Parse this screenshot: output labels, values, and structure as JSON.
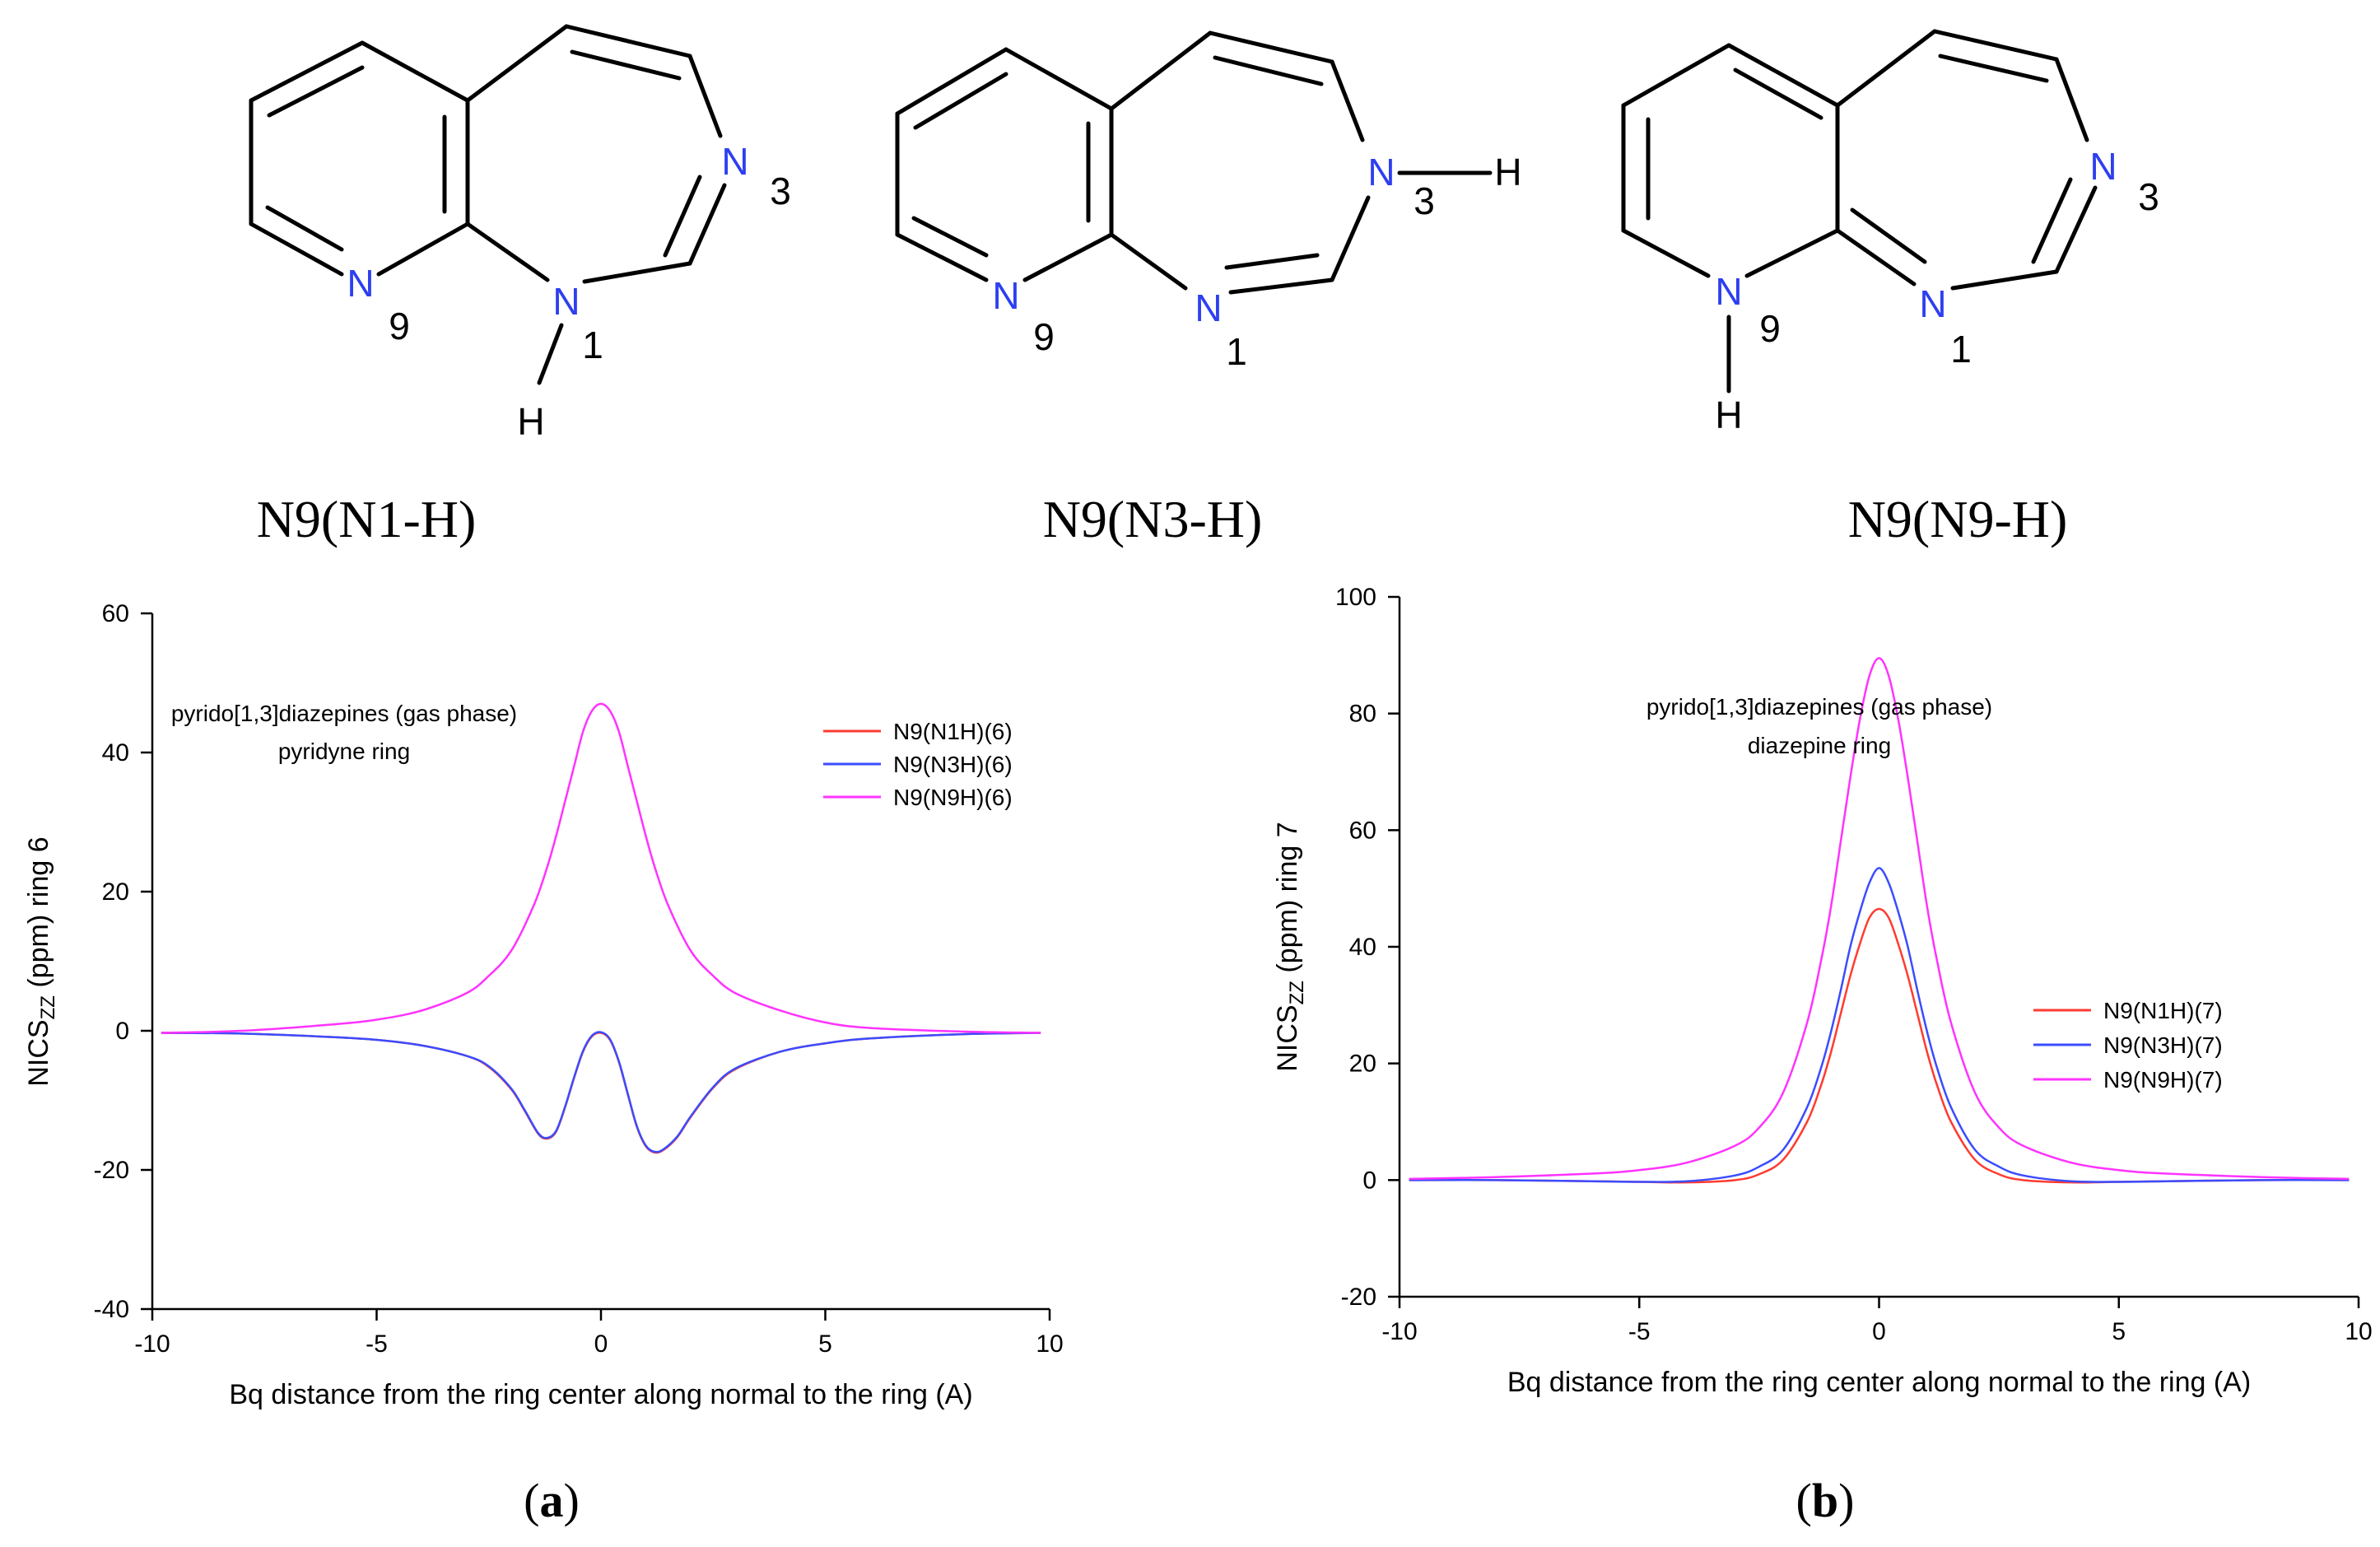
{
  "structures": [
    {
      "name": "N9(N1-H)",
      "atom_N": "N",
      "atom_H": "H",
      "labels": [
        "3",
        "9",
        "1"
      ]
    },
    {
      "name": "N9(N3-H)",
      "atom_N": "N",
      "atom_H": "H",
      "labels": [
        "3",
        "9",
        "1"
      ]
    },
    {
      "name": "N9(N9-H)",
      "atom_N": "N",
      "atom_H": "H",
      "labels": [
        "3",
        "9",
        "1"
      ]
    }
  ],
  "colors": {
    "N1H": "#ff3b30",
    "N3H": "#3b4cff",
    "N9H": "#ff33ff",
    "atomN": "#2d3ff0"
  },
  "chart_data": [
    {
      "type": "line",
      "panel_label": "a",
      "annotation_line1": "pyrido[1,3]diazepines (gas phase)",
      "annotation_line2": "pyridyne ring",
      "ylabel_prefix": "NICS",
      "ylabel_sub": "ZZ",
      "ylabel_suffix": " (ppm) ring 6",
      "xlabel": "Bq distance from the ring center along normal to the ring (A)",
      "xlim": [
        -10,
        10
      ],
      "ylim": [
        -40,
        60
      ],
      "xticks": [
        -10,
        -5,
        0,
        5,
        10
      ],
      "yticks": [
        -40,
        -20,
        0,
        20,
        40,
        60
      ],
      "legend_position": "right-middle",
      "series": [
        {
          "name": "N9(N1H)(6)",
          "color": "#ff3b30",
          "x": [
            -9.8,
            -8,
            -6,
            -5,
            -4,
            -3,
            -2.5,
            -2,
            -1.7,
            -1.4,
            -1.2,
            -1.0,
            -0.8,
            -0.6,
            -0.4,
            -0.2,
            0,
            0.2,
            0.4,
            0.6,
            0.8,
            1.0,
            1.2,
            1.4,
            1.7,
            2,
            2.5,
            3,
            4,
            5,
            6,
            8,
            9.8
          ],
          "y": [
            -0.3,
            -0.4,
            -0.9,
            -1.3,
            -2.1,
            -3.6,
            -5.2,
            -8.4,
            -11.5,
            -14.8,
            -15.5,
            -14.5,
            -11,
            -6.8,
            -3,
            -0.8,
            -0.3,
            -1.3,
            -4.5,
            -9.2,
            -13.8,
            -16.6,
            -17.5,
            -17.1,
            -15.3,
            -12.4,
            -8.2,
            -5.5,
            -3,
            -1.8,
            -1.1,
            -0.5,
            -0.3
          ]
        },
        {
          "name": "N9(N3H)(6)",
          "color": "#3b4cff",
          "x": [
            -9.8,
            -8,
            -6,
            -5,
            -4,
            -3,
            -2.5,
            -2,
            -1.7,
            -1.4,
            -1.2,
            -1.0,
            -0.8,
            -0.6,
            -0.4,
            -0.2,
            0,
            0.2,
            0.4,
            0.6,
            0.8,
            1.0,
            1.2,
            1.4,
            1.7,
            2,
            2.5,
            3,
            4,
            5,
            6,
            8,
            9.8
          ],
          "y": [
            -0.3,
            -0.4,
            -0.9,
            -1.3,
            -2.1,
            -3.6,
            -5.1,
            -8.3,
            -11.4,
            -14.7,
            -15.4,
            -14.4,
            -10.9,
            -6.7,
            -2.9,
            -0.7,
            -0.2,
            -1.2,
            -4.4,
            -9.1,
            -13.7,
            -16.5,
            -17.4,
            -17.0,
            -15.2,
            -12.3,
            -8.1,
            -5.4,
            -3,
            -1.8,
            -1.1,
            -0.5,
            -0.3
          ]
        },
        {
          "name": "N9(N9H)(6)",
          "color": "#ff33ff",
          "x": [
            -9.8,
            -8,
            -6,
            -5,
            -4,
            -3,
            -2.5,
            -2,
            -1.5,
            -1.2,
            -1.0,
            -0.8,
            -0.6,
            -0.4,
            -0.2,
            0,
            0.2,
            0.4,
            0.6,
            0.8,
            1.0,
            1.2,
            1.5,
            2,
            2.5,
            3,
            4,
            5,
            6,
            8,
            9.8
          ],
          "y": [
            -0.3,
            0,
            0.9,
            1.6,
            2.9,
            5.4,
            7.9,
            11.5,
            18,
            23.5,
            28,
            33,
            38,
            43,
            46,
            47,
            46,
            43,
            38,
            33,
            28,
            23.5,
            18,
            11.5,
            7.9,
            5.4,
            2.9,
            1.2,
            0.4,
            -0.1,
            -0.3
          ]
        }
      ]
    },
    {
      "type": "line",
      "panel_label": "b",
      "annotation_line1": "pyrido[1,3]diazepines (gas phase)",
      "annotation_line2": "diazepine ring",
      "ylabel_prefix": "NICS",
      "ylabel_sub": "ZZ",
      "ylabel_suffix": " (ppm) ring 7",
      "xlabel": "Bq distance from the ring center along normal to the ring (A)",
      "xlim": [
        -10,
        10
      ],
      "ylim": [
        -20,
        100
      ],
      "xticks": [
        -10,
        -5,
        0,
        5,
        10
      ],
      "yticks": [
        -20,
        0,
        20,
        40,
        60,
        80,
        100
      ],
      "legend_position": "right-middle",
      "series": [
        {
          "name": "N9(N1H)(7)",
          "color": "#ff3b30",
          "x": [
            -9.8,
            -8,
            -6,
            -5,
            -4,
            -3,
            -2.5,
            -2,
            -1.5,
            -1.2,
            -1.0,
            -0.8,
            -0.6,
            -0.4,
            -0.2,
            0,
            0.2,
            0.4,
            0.6,
            0.8,
            1.0,
            1.2,
            1.5,
            2,
            2.5,
            3,
            4,
            5,
            6,
            8,
            9.8
          ],
          "y": [
            0,
            0,
            -0.2,
            -0.3,
            -0.4,
            0,
            1,
            3.5,
            10,
            16.5,
            22,
            28.5,
            35,
            40.5,
            45,
            46.5,
            45,
            40.5,
            35,
            28.5,
            22,
            16.5,
            10,
            3.5,
            1,
            0,
            -0.4,
            -0.3,
            -0.2,
            0,
            0
          ]
        },
        {
          "name": "N9(N3H)(7)",
          "color": "#3b4cff",
          "x": [
            -9.8,
            -8,
            -6,
            -5,
            -4,
            -3,
            -2.5,
            -2,
            -1.5,
            -1.2,
            -1.0,
            -0.8,
            -0.6,
            -0.4,
            -0.2,
            0,
            0.2,
            0.4,
            0.6,
            0.8,
            1.0,
            1.2,
            1.5,
            2,
            2.5,
            3,
            4,
            5,
            6,
            8,
            9.8
          ],
          "y": [
            0,
            0,
            -0.2,
            -0.3,
            -0.2,
            0.8,
            2.3,
            5.2,
            12.5,
            19.5,
            25.5,
            32.5,
            40,
            46,
            51,
            53.5,
            51,
            46,
            40,
            32.5,
            25.5,
            19.5,
            12.5,
            5.2,
            2.3,
            0.8,
            -0.2,
            -0.3,
            -0.2,
            0,
            0
          ]
        },
        {
          "name": "N9(N9H)(7)",
          "color": "#ff33ff",
          "x": [
            -9.8,
            -8,
            -6,
            -5,
            -4,
            -3,
            -2.5,
            -2,
            -1.5,
            -1.2,
            -1.0,
            -0.8,
            -0.6,
            -0.4,
            -0.2,
            0,
            0.2,
            0.4,
            0.6,
            0.8,
            1.0,
            1.2,
            1.5,
            2,
            2.5,
            3,
            4,
            5,
            6,
            8,
            9.8
          ],
          "y": [
            0.2,
            0.5,
            1.1,
            1.7,
            3,
            5.9,
            9,
            15,
            27,
            38,
            47,
            58,
            69,
            79,
            86.5,
            89.5,
            86.5,
            79,
            69,
            58,
            47,
            38,
            27,
            15,
            9,
            5.9,
            3,
            1.7,
            1.1,
            0.5,
            0.2
          ]
        }
      ]
    }
  ]
}
